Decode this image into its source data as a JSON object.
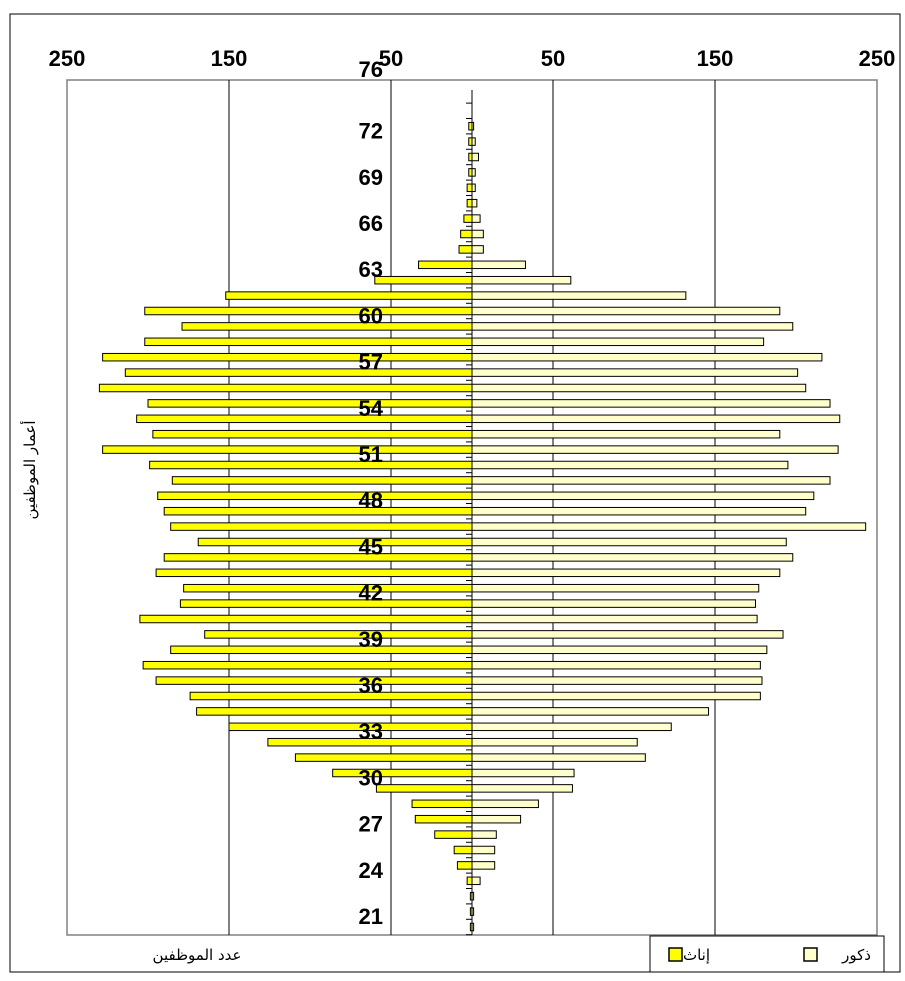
{
  "chart_data": {
    "type": "bar",
    "orientation": "horizontal",
    "layout": "population-pyramid",
    "x_tick_labels": [
      "250",
      "150",
      "50",
      "50",
      "150",
      "250"
    ],
    "xlim": [
      -250,
      250
    ],
    "y_tick_labels": [
      "21",
      "24",
      "27",
      "30",
      "33",
      "36",
      "39",
      "42",
      "45",
      "48",
      "51",
      "54",
      "57",
      "60",
      "63",
      "66",
      "69",
      "72",
      "76"
    ],
    "xlabel": "عدد الموظفين",
    "ylabel": "أعمار الموظفين",
    "grid": true,
    "legend_position": "bottom-right",
    "ages": [
      21,
      22,
      23,
      24,
      25,
      26,
      27,
      28,
      29,
      30,
      31,
      32,
      33,
      34,
      35,
      36,
      37,
      38,
      39,
      40,
      41,
      42,
      43,
      44,
      45,
      46,
      47,
      48,
      49,
      50,
      51,
      52,
      53,
      54,
      55,
      56,
      57,
      58,
      59,
      60,
      61,
      62,
      63,
      64,
      65,
      66,
      67,
      68,
      69,
      70,
      71,
      72,
      73,
      74,
      75,
      76,
      77,
      78,
      79,
      80
    ],
    "series": [
      {
        "name": "ذكور",
        "color": "#ffffcc",
        "values": [
          1,
          1,
          1,
          5,
          14,
          14,
          15,
          30,
          41,
          62,
          63,
          107,
          102,
          123,
          146,
          178,
          179,
          178,
          182,
          192,
          176,
          175,
          177,
          190,
          198,
          194,
          243,
          206,
          211,
          221,
          195,
          226,
          190,
          227,
          221,
          206,
          201,
          216,
          180,
          198,
          190,
          132,
          61,
          33,
          7,
          7,
          5,
          3,
          2,
          2,
          4,
          2,
          1,
          0,
          0,
          0,
          0,
          0,
          0,
          0
        ]
      },
      {
        "name": "إناث",
        "color": "#ffff00",
        "values": [
          1,
          1,
          1,
          3,
          9,
          11,
          23,
          35,
          37,
          59,
          86,
          109,
          126,
          150,
          170,
          174,
          195,
          203,
          186,
          165,
          205,
          180,
          178,
          195,
          190,
          169,
          186,
          190,
          194,
          185,
          199,
          228,
          197,
          207,
          200,
          230,
          214,
          228,
          202,
          179,
          202,
          152,
          60,
          33,
          8,
          7,
          5,
          3,
          3,
          2,
          2,
          2,
          2,
          0,
          0,
          0,
          0,
          0,
          0,
          0
        ]
      }
    ]
  }
}
